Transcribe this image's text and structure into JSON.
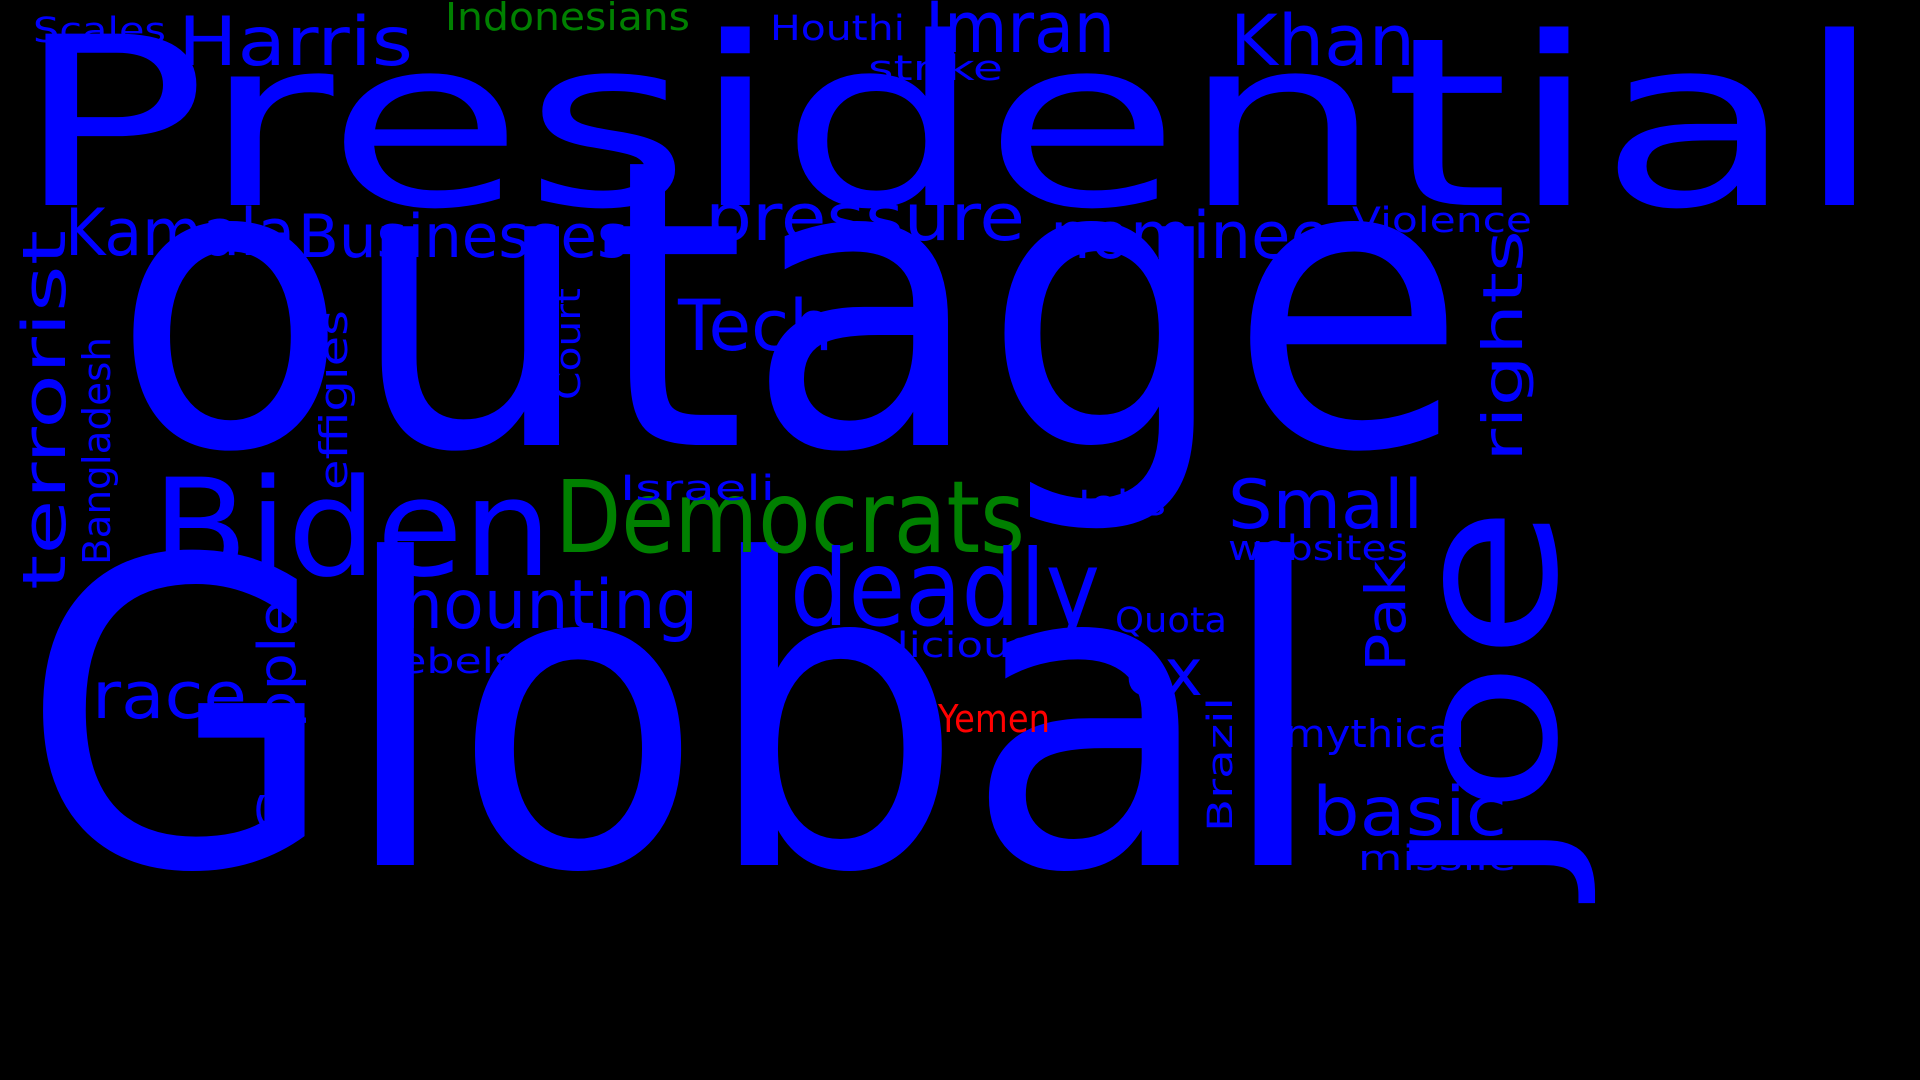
{
  "background_color": "#000000",
  "palette": {
    "blue": "#0000ff",
    "green": "#008000",
    "red": "#ff0000"
  },
  "words": [
    {
      "text": "Presidential",
      "color": "blue"
    },
    {
      "text": "outage",
      "color": "blue"
    },
    {
      "text": "Global",
      "color": "blue"
    },
    {
      "text": "Joe",
      "color": "blue"
    },
    {
      "text": "Biden",
      "color": "blue"
    },
    {
      "text": "Democrats",
      "color": "green"
    },
    {
      "text": "deadly",
      "color": "blue"
    },
    {
      "text": "Imran",
      "color": "blue"
    },
    {
      "text": "Khan",
      "color": "blue"
    },
    {
      "text": "Harris",
      "color": "blue"
    },
    {
      "text": "Kamala",
      "color": "blue"
    },
    {
      "text": "pressure",
      "color": "blue"
    },
    {
      "text": "nominee",
      "color": "blue"
    },
    {
      "text": "Businesses",
      "color": "blue"
    },
    {
      "text": "Tech",
      "color": "blue"
    },
    {
      "text": "mounting",
      "color": "blue"
    },
    {
      "text": "Small",
      "color": "blue"
    },
    {
      "text": "race",
      "color": "blue"
    },
    {
      "text": "ex",
      "color": "blue"
    },
    {
      "text": "basic",
      "color": "blue"
    },
    {
      "text": "terrorist",
      "color": "blue"
    },
    {
      "text": "rights",
      "color": "blue"
    },
    {
      "text": "Pak",
      "color": "blue"
    },
    {
      "text": "Grapple",
      "color": "blue"
    },
    {
      "text": "Bangladesh",
      "color": "blue"
    },
    {
      "text": "effigies",
      "color": "blue"
    },
    {
      "text": "Court",
      "color": "blue"
    },
    {
      "text": "Brazil",
      "color": "blue"
    },
    {
      "text": "Indonesians",
      "color": "green"
    },
    {
      "text": "Scales",
      "color": "blue"
    },
    {
      "text": "Houthi",
      "color": "blue"
    },
    {
      "text": "strike",
      "color": "blue"
    },
    {
      "text": "Violence",
      "color": "blue"
    },
    {
      "text": "Israeli",
      "color": "blue"
    },
    {
      "text": "Jobs",
      "color": "blue"
    },
    {
      "text": "websites",
      "color": "blue"
    },
    {
      "text": "Quota",
      "color": "blue"
    },
    {
      "text": "malicious",
      "color": "blue"
    },
    {
      "text": "rebels",
      "color": "blue"
    },
    {
      "text": "Yemen",
      "color": "red"
    },
    {
      "text": "mythical",
      "color": "blue"
    },
    {
      "text": "missile",
      "color": "blue"
    }
  ]
}
